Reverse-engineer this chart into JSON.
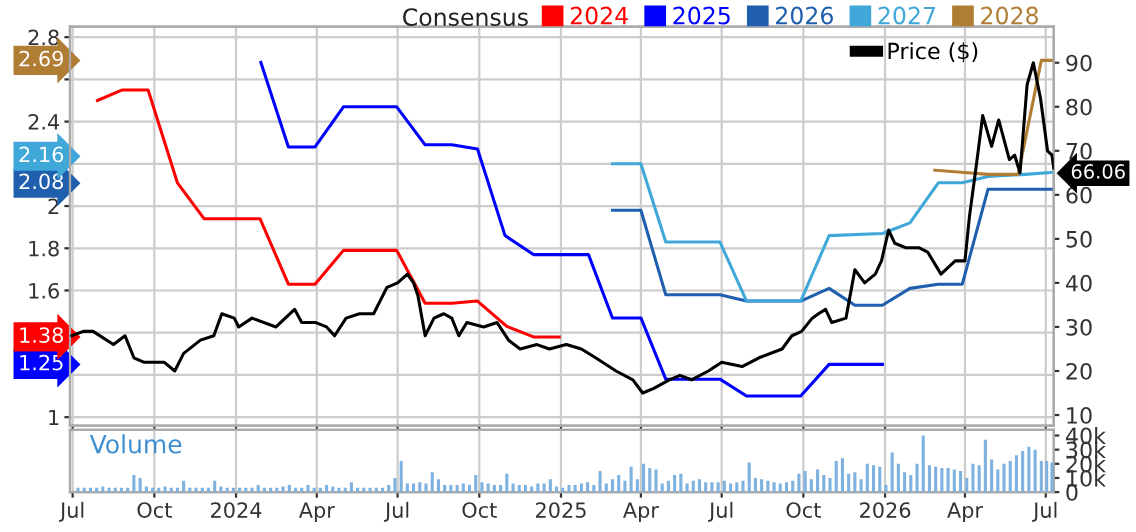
{
  "chart_data": [
    {
      "type": "line",
      "legend_title": "Consensus",
      "legend": "top",
      "grid": true,
      "tick_labels": "y",
      "xlim": [
        "2023-06-28",
        "2026-07-10"
      ],
      "xticks": [
        {
          "value": "2023-07-01",
          "label": null
        },
        {
          "value": "2023-10-01",
          "label": null
        },
        {
          "value": "2024-01-01",
          "label": null
        },
        {
          "value": "2024-04-01",
          "label": null
        },
        {
          "value": "2024-07-01",
          "label": null
        },
        {
          "value": "2024-10-01",
          "label": null
        },
        {
          "value": "2025-01-01",
          "label": null
        },
        {
          "value": "2025-04-01",
          "label": null
        },
        {
          "value": "2025-07-01",
          "label": null
        },
        {
          "value": "2025-10-01",
          "label": null
        },
        {
          "value": "2026-01-01",
          "label": null
        },
        {
          "value": "2026-04-01",
          "label": null
        },
        {
          "value": "2026-07-01",
          "label": null
        }
      ],
      "annotations": [
        "1.38",
        "1.25",
        "2.08",
        "2.16",
        "2.69"
      ],
      "ylim": [
        0.96,
        2.85
      ],
      "yticks": [
        1,
        {
          "value": 1.2,
          "label": null
        },
        {
          "value": 1.4,
          "label": null
        },
        1.6,
        1.8,
        2,
        {
          "value": 2.2,
          "label": null
        },
        2.4,
        {
          "value": 2.6,
          "label": null
        },
        2.8
      ],
      "y2lim": [
        7.6,
        98.2
      ],
      "y2ticks": [
        10,
        20,
        30,
        40,
        50,
        60,
        70,
        80,
        90
      ],
      "series": [
        {
          "name": "2024",
          "color": "#ff0000",
          "x": [
            "2023-07-29",
            "2023-08-26",
            "2023-09-24",
            "2023-10-27",
            "2023-11-26",
            "2024-01-28",
            "2024-02-29",
            "2024-03-30",
            "2024-05-01",
            "2024-06-30",
            "2024-08-01",
            "2024-08-31",
            "2024-09-29",
            "2024-11-01",
            "2024-12-01",
            "2024-12-30"
          ],
          "values": [
            2.5,
            2.55,
            2.55,
            2.11,
            1.94,
            1.94,
            1.63,
            1.63,
            1.79,
            1.79,
            1.54,
            1.54,
            1.55,
            1.43,
            1.38,
            1.38
          ]
        },
        {
          "name": "2025",
          "color": "#0000ff",
          "x": [
            "2024-01-29",
            "2024-02-29",
            "2024-03-30",
            "2024-05-01",
            "2024-06-30",
            "2024-08-01",
            "2024-08-31",
            "2024-09-29",
            "2024-10-30",
            "2024-12-01",
            "2025-02-01",
            "2025-02-28",
            "2025-04-01",
            "2025-04-29",
            "2025-06-29",
            "2025-07-29",
            "2025-09-28",
            "2025-10-30",
            "2025-12-29"
          ],
          "values": [
            2.68,
            2.28,
            2.28,
            2.47,
            2.47,
            2.29,
            2.29,
            2.27,
            1.86,
            1.77,
            1.77,
            1.47,
            1.47,
            1.18,
            1.18,
            1.1,
            1.1,
            1.25,
            1.25
          ]
        },
        {
          "name": "2026",
          "color": "#1f5fae",
          "x": [
            "2025-02-28",
            "2025-04-01",
            "2025-04-29",
            "2025-06-29",
            "2025-07-29",
            "2025-09-28",
            "2025-10-30",
            "2025-11-28",
            "2025-12-29",
            "2026-01-29",
            "2026-03-02",
            "2026-03-29",
            "2026-04-27",
            "2026-07-10"
          ],
          "values": [
            1.98,
            1.98,
            1.58,
            1.58,
            1.55,
            1.55,
            1.61,
            1.53,
            1.53,
            1.61,
            1.63,
            1.63,
            2.08,
            2.08
          ]
        },
        {
          "name": "2027",
          "color": "#3fa8d8",
          "x": [
            "2025-02-28",
            "2025-04-01",
            "2025-04-29",
            "2025-06-29",
            "2025-07-29",
            "2025-09-28",
            "2025-10-30",
            "2025-12-29",
            "2026-01-29",
            "2026-03-02",
            "2026-03-29",
            "2026-04-27",
            "2026-06-08",
            "2026-07-10"
          ],
          "values": [
            2.2,
            2.2,
            1.83,
            1.83,
            1.55,
            1.55,
            1.86,
            1.87,
            1.92,
            2.11,
            2.11,
            2.14,
            2.15,
            2.16
          ]
        },
        {
          "name": "2028",
          "color": "#b07d35",
          "x": [
            "2026-02-26",
            "2026-03-28",
            "2026-04-27",
            "2026-05-31",
            "2026-06-26",
            "2026-07-10"
          ],
          "values": [
            2.17,
            2.16,
            2.15,
            2.15,
            2.69,
            2.69
          ]
        },
        {
          "name": "Price ($)",
          "color": "#000000",
          "axis": "y2",
          "x": [
            "2023-06-30",
            "2023-07-13",
            "2023-07-24",
            "2023-08-16",
            "2023-08-29",
            "2023-09-08",
            "2023-09-19",
            "2023-10-12",
            "2023-10-24",
            "2023-11-03",
            "2023-11-22",
            "2023-12-07",
            "2023-12-16",
            "2023-12-30",
            "2024-01-04",
            "2024-01-19",
            "2024-02-15",
            "2024-03-07",
            "2024-03-15",
            "2024-03-31",
            "2024-04-12",
            "2024-04-21",
            "2024-05-04",
            "2024-05-19",
            "2024-06-04",
            "2024-06-19",
            "2024-07-01",
            "2024-07-12",
            "2024-07-19",
            "2024-07-24",
            "2024-08-01",
            "2024-08-11",
            "2024-08-22",
            "2024-08-31",
            "2024-09-08",
            "2024-09-17",
            "2024-10-06",
            "2024-10-21",
            "2024-11-03",
            "2024-11-16",
            "2024-12-05",
            "2024-12-19",
            "2025-01-07",
            "2025-01-24",
            "2025-02-09",
            "2025-03-04",
            "2025-03-23",
            "2025-04-03",
            "2025-04-15",
            "2025-05-03",
            "2025-05-15",
            "2025-05-28",
            "2025-06-16",
            "2025-07-01",
            "2025-07-24",
            "2025-08-12",
            "2025-09-07",
            "2025-09-18",
            "2025-09-29",
            "2025-10-11",
            "2025-10-18",
            "2025-10-26",
            "2025-11-02",
            "2025-11-18",
            "2025-11-28",
            "2025-12-09",
            "2025-12-21",
            "2025-12-28",
            "2026-01-05",
            "2026-01-12",
            "2026-01-24",
            "2026-02-08",
            "2026-02-18",
            "2026-03-05",
            "2026-03-21",
            "2026-04-01",
            "2026-04-06",
            "2026-04-14",
            "2026-04-21",
            "2026-05-01",
            "2026-05-09",
            "2026-05-21",
            "2026-05-27",
            "2026-06-02",
            "2026-06-10",
            "2026-06-17",
            "2026-06-25",
            "2026-07-03",
            "2026-07-08",
            "2026-07-10"
          ],
          "values": [
            28,
            29,
            29,
            26,
            28,
            23,
            22,
            22,
            20,
            24,
            27,
            28,
            33,
            32,
            30,
            32,
            30,
            34,
            31,
            31,
            30,
            28,
            32,
            33,
            33,
            39,
            40,
            42,
            40,
            37,
            28,
            32,
            33,
            32,
            28,
            31,
            30,
            31,
            27,
            25,
            26,
            25,
            26,
            25,
            23,
            20,
            18,
            15,
            16,
            18,
            19,
            18,
            20,
            22,
            21,
            23,
            25,
            28,
            29,
            32,
            33,
            34,
            31,
            32,
            43,
            40,
            42,
            45,
            52,
            49,
            48,
            48,
            47,
            42,
            45,
            45,
            55,
            67,
            78,
            71,
            77,
            68,
            69,
            65,
            85,
            90,
            82,
            70,
            69,
            66.06
          ],
          "value_labels": [
            null,
            null,
            null,
            null,
            null,
            null,
            null,
            null,
            null,
            null,
            null,
            null,
            null,
            null,
            null,
            null,
            null,
            null,
            null,
            null,
            null,
            null,
            null,
            null,
            null,
            null,
            null,
            null,
            null,
            null,
            null,
            null,
            null,
            null,
            null,
            null,
            null,
            null,
            null,
            null,
            null,
            null,
            null,
            null,
            null,
            null,
            null,
            null,
            null,
            null,
            null,
            null,
            null,
            null,
            null,
            null,
            null,
            null,
            null,
            null,
            null,
            null,
            null,
            null,
            null,
            null,
            null,
            null,
            null,
            null,
            null,
            null,
            null,
            null,
            null,
            null,
            null,
            null,
            null,
            null,
            null,
            null,
            null,
            null,
            null,
            null,
            null,
            null,
            null,
            "66.06"
          ]
        }
      ]
    },
    {
      "type": "bar",
      "title": "Volume",
      "grid": "x",
      "xlim": [
        "2023-06-28",
        "2026-07-10"
      ],
      "xticks": [
        {
          "value": "2023-07-01",
          "label": "Jul"
        },
        {
          "value": "2023-10-01",
          "label": "Oct"
        },
        {
          "value": "2024-01-01",
          "label": "2024"
        },
        {
          "value": "2024-04-01",
          "label": "Apr"
        },
        {
          "value": "2024-07-01",
          "label": "Jul"
        },
        {
          "value": "2024-10-01",
          "label": "Oct"
        },
        {
          "value": "2025-01-01",
          "label": "2025"
        },
        {
          "value": "2025-04-01",
          "label": "Apr"
        },
        {
          "value": "2025-07-01",
          "label": "Jul"
        },
        {
          "value": "2025-10-01",
          "label": "Oct"
        },
        {
          "value": "2026-01-01",
          "label": "2026"
        },
        {
          "value": "2026-04-01",
          "label": "Apr"
        },
        {
          "value": "2026-07-01",
          "label": "Jul"
        }
      ],
      "y2lim": [
        0,
        44
      ],
      "y2ticks": [
        0,
        {
          "value": 10,
          "label": "10k"
        },
        {
          "value": 20,
          "label": "20k"
        },
        {
          "value": 30,
          "label": "30k"
        },
        {
          "value": 40,
          "label": "40k"
        }
      ],
      "series": [
        {
          "color": "#7fb2de",
          "axis": "y2",
          "x": [
            "2023-07-07",
            "2023-07-14",
            "2023-07-21",
            "2023-07-28",
            "2023-08-04",
            "2023-08-11",
            "2023-08-18",
            "2023-08-25",
            "2023-09-01",
            "2023-09-08",
            "2023-09-15",
            "2023-09-22",
            "2023-09-29",
            "2023-10-06",
            "2023-10-13",
            "2023-10-20",
            "2023-10-27",
            "2023-11-03",
            "2023-11-10",
            "2023-11-17",
            "2023-11-24",
            "2023-12-01",
            "2023-12-08",
            "2023-12-15",
            "2023-12-22",
            "2023-12-29",
            "2024-01-05",
            "2024-01-12",
            "2024-01-19",
            "2024-01-26",
            "2024-02-02",
            "2024-02-09",
            "2024-02-16",
            "2024-02-23",
            "2024-03-01",
            "2024-03-08",
            "2024-03-15",
            "2024-03-22",
            "2024-03-29",
            "2024-04-05",
            "2024-04-12",
            "2024-04-19",
            "2024-04-26",
            "2024-05-03",
            "2024-05-10",
            "2024-05-17",
            "2024-05-24",
            "2024-05-31",
            "2024-06-07",
            "2024-06-14",
            "2024-06-21",
            "2024-06-28",
            "2024-07-05",
            "2024-07-12",
            "2024-07-19",
            "2024-07-26",
            "2024-08-02",
            "2024-08-09",
            "2024-08-16",
            "2024-08-23",
            "2024-08-30",
            "2024-09-06",
            "2024-09-13",
            "2024-09-20",
            "2024-09-27",
            "2024-10-04",
            "2024-10-11",
            "2024-10-18",
            "2024-10-25",
            "2024-11-01",
            "2024-11-08",
            "2024-11-15",
            "2024-11-22",
            "2024-11-29",
            "2024-12-06",
            "2024-12-13",
            "2024-12-20",
            "2024-12-27",
            "2025-01-03",
            "2025-01-10",
            "2025-01-17",
            "2025-01-24",
            "2025-01-31",
            "2025-02-07",
            "2025-02-14",
            "2025-02-21",
            "2025-02-28",
            "2025-03-07",
            "2025-03-14",
            "2025-03-21",
            "2025-03-28",
            "2025-04-04",
            "2025-04-11",
            "2025-04-18",
            "2025-04-25",
            "2025-05-02",
            "2025-05-09",
            "2025-05-16",
            "2025-05-23",
            "2025-05-30",
            "2025-06-06",
            "2025-06-13",
            "2025-06-20",
            "2025-06-27",
            "2025-07-04",
            "2025-07-11",
            "2025-07-18",
            "2025-07-25",
            "2025-08-01",
            "2025-08-08",
            "2025-08-15",
            "2025-08-22",
            "2025-08-29",
            "2025-09-05",
            "2025-09-12",
            "2025-09-19",
            "2025-09-26",
            "2025-10-03",
            "2025-10-10",
            "2025-10-17",
            "2025-10-24",
            "2025-10-31",
            "2025-11-07",
            "2025-11-14",
            "2025-11-21",
            "2025-11-28",
            "2025-12-05",
            "2025-12-12",
            "2025-12-19",
            "2025-12-26",
            "2026-01-02",
            "2026-01-09",
            "2026-01-16",
            "2026-01-23",
            "2026-01-30",
            "2026-02-06",
            "2026-02-13",
            "2026-02-20",
            "2026-02-27",
            "2026-03-06",
            "2026-03-13",
            "2026-03-20",
            "2026-03-27",
            "2026-04-03",
            "2026-04-10",
            "2026-04-17",
            "2026-04-24",
            "2026-05-01",
            "2026-05-08",
            "2026-05-15",
            "2026-05-22",
            "2026-05-29",
            "2026-06-05",
            "2026-06-12",
            "2026-06-19",
            "2026-06-26",
            "2026-07-02",
            "2026-07-08"
          ],
          "values": [
            3,
            3,
            3,
            3,
            4,
            3,
            3,
            3,
            3,
            12,
            10,
            4,
            3,
            3,
            4,
            3,
            3,
            8,
            3,
            3,
            3,
            3,
            8,
            4,
            3,
            3,
            3,
            3,
            3,
            5,
            3,
            3,
            3,
            4,
            5,
            3,
            3,
            5,
            3,
            3,
            5,
            4,
            3,
            3,
            7,
            3,
            3,
            3,
            3,
            3,
            5,
            10,
            22,
            6,
            6,
            7,
            6,
            14,
            9,
            5,
            5,
            5,
            6,
            5,
            12,
            7,
            6,
            5,
            5,
            13,
            6,
            5,
            5,
            4,
            6,
            6,
            9,
            4,
            3,
            5,
            5,
            6,
            7,
            5,
            15,
            6,
            9,
            12,
            8,
            18,
            9,
            20,
            17,
            16,
            6,
            8,
            12,
            13,
            6,
            8,
            9,
            7,
            7,
            7,
            8,
            6,
            7,
            8,
            21,
            10,
            9,
            8,
            7,
            6,
            7,
            8,
            13,
            15,
            9,
            16,
            12,
            10,
            22,
            24,
            13,
            14,
            9,
            20,
            19,
            18,
            5,
            28,
            20,
            14,
            12,
            20,
            40,
            19,
            18,
            17,
            17,
            16,
            15,
            10,
            20,
            19,
            37,
            23,
            16,
            20,
            22,
            26,
            29,
            32,
            30,
            22,
            22,
            21
          ]
        }
      ]
    }
  ]
}
